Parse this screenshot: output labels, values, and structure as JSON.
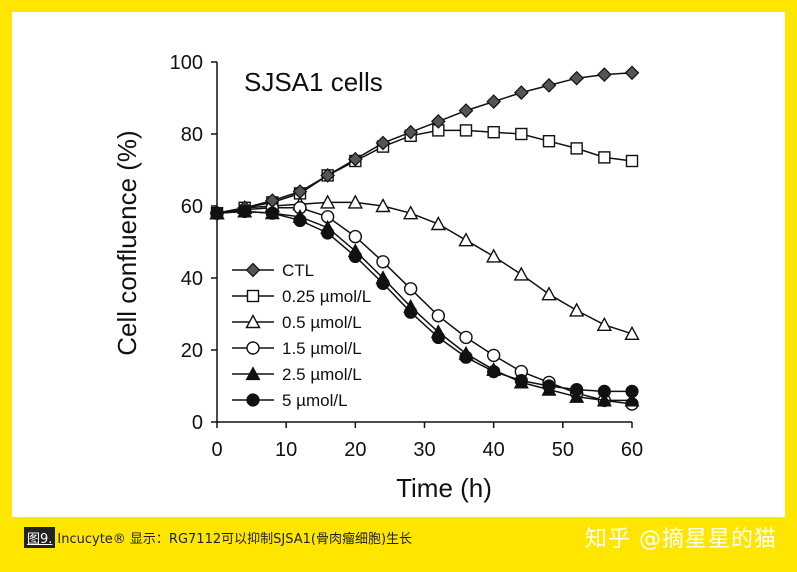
{
  "chart_data": {
    "type": "line",
    "title": "SJSA1 cells",
    "xlabel": "Time (h)",
    "ylabel": "Cell confluence (%)",
    "xlim": [
      0,
      60
    ],
    "ylim": [
      0,
      100
    ],
    "x_ticks": [
      0,
      10,
      20,
      30,
      40,
      50,
      60
    ],
    "y_ticks": [
      0,
      20,
      40,
      60,
      80,
      100
    ],
    "x": [
      0,
      4,
      8,
      12,
      16,
      20,
      24,
      28,
      32,
      36,
      40,
      44,
      48,
      52,
      56,
      60
    ],
    "series": [
      {
        "name": "CTL",
        "marker": "diamond",
        "values": [
          58,
          59.5,
          61.5,
          64,
          68.5,
          73,
          77.5,
          80.5,
          83.5,
          86.5,
          89,
          91.5,
          93.5,
          95.5,
          96.5,
          97
        ]
      },
      {
        "name": "0.25 µmol/L",
        "marker": "square-open",
        "values": [
          58,
          59.5,
          61,
          63.5,
          68.5,
          72.5,
          76.5,
          79.5,
          81,
          81,
          80.5,
          80,
          78,
          76,
          73.5,
          72.5
        ]
      },
      {
        "name": "0.5 µmol/L",
        "marker": "triangle-open",
        "values": [
          58,
          59.5,
          60,
          60.5,
          61,
          61,
          60,
          58,
          55,
          50.5,
          46,
          41,
          35.5,
          31,
          27,
          24.5
        ]
      },
      {
        "name": "1.5 µmol/L",
        "marker": "circle-open",
        "values": [
          58,
          59,
          59.5,
          59.5,
          57,
          51.5,
          44.5,
          37,
          29.5,
          23.5,
          18.5,
          14,
          11,
          8,
          6,
          5
        ]
      },
      {
        "name": "2.5 µmol/L",
        "marker": "triangle-filled",
        "values": [
          58,
          58.5,
          58,
          57,
          54,
          47.5,
          40,
          32,
          25,
          19,
          14.5,
          11,
          9,
          7,
          6,
          6
        ]
      },
      {
        "name": "5 µmol/L",
        "marker": "circle-filled",
        "values": [
          58,
          58.5,
          58,
          56,
          52.5,
          46,
          38.5,
          30.5,
          23.5,
          18,
          14,
          11.5,
          10,
          9,
          8.5,
          8.5
        ]
      }
    ]
  },
  "caption": {
    "badge": "图9.",
    "text": "Incucyte® 显示：RG7112可以抑制SJSA1(骨肉瘤细胞)生长"
  },
  "watermark": "知乎 @摘星星的猫"
}
